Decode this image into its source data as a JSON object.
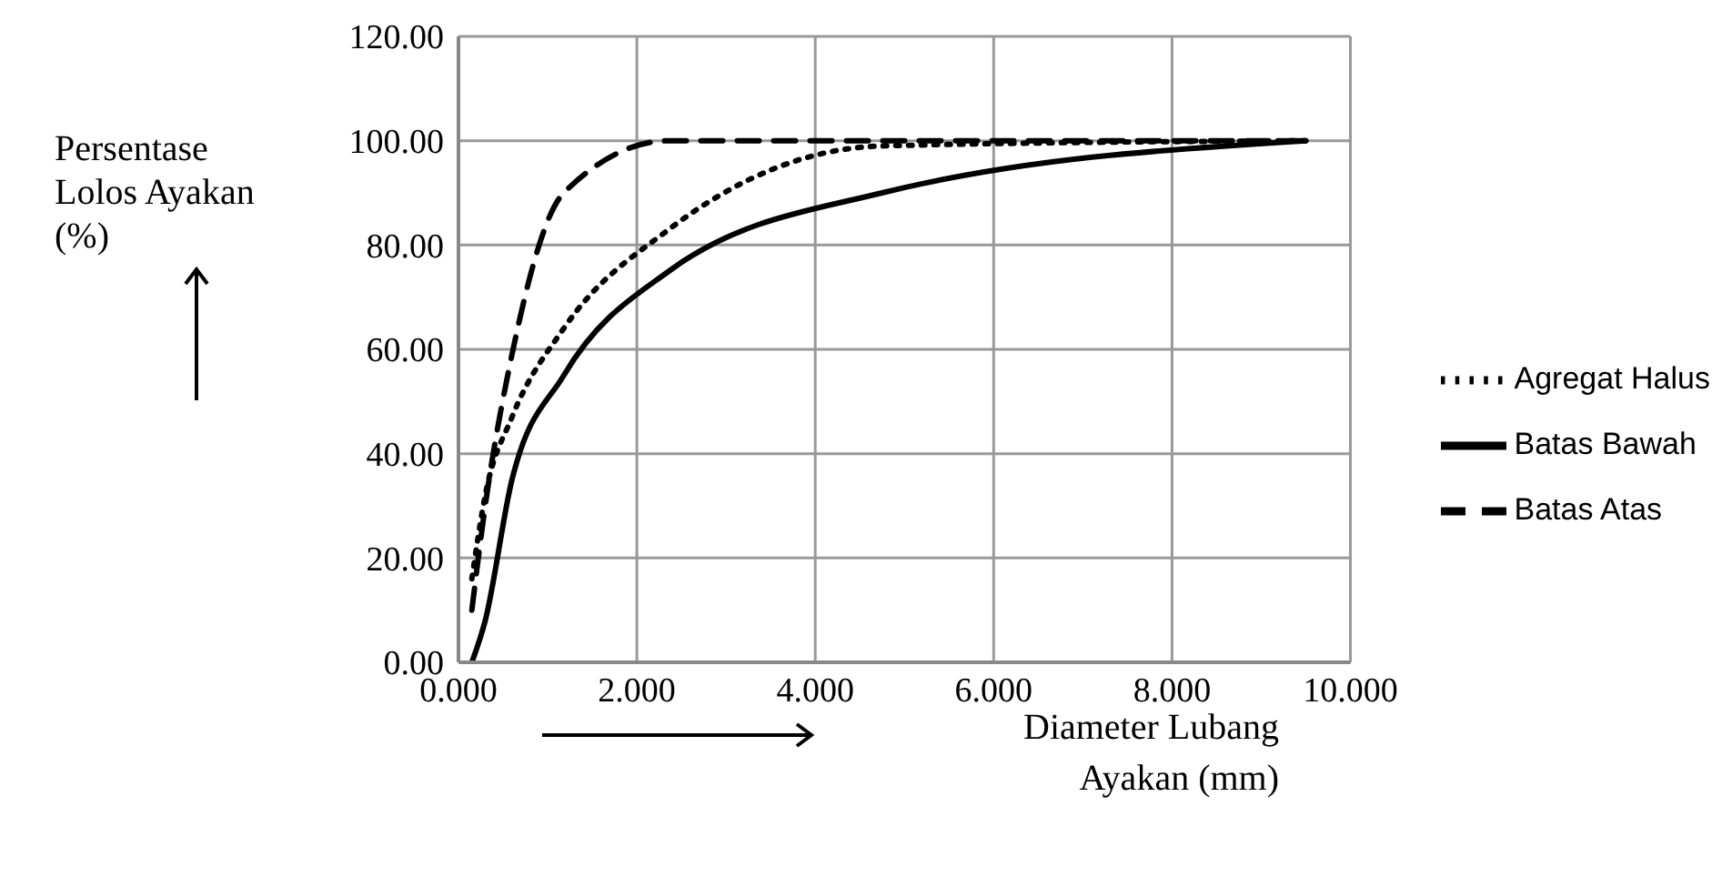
{
  "chart_data": {
    "type": "line",
    "xlabel": "Diameter Lubang Ayakan (mm)",
    "ylabel": "Persentase Lolos Ayakan (%)",
    "series": [
      {
        "name": "Agregat Halus",
        "color": "#000000",
        "line_style": "dotted",
        "x": [
          0.15,
          0.3,
          0.6,
          1.18,
          2.36,
          4.75,
          9.5
        ],
        "values": [
          16,
          32,
          47,
          64,
          83,
          99,
          100
        ]
      },
      {
        "name": "Batas Bawah",
        "color": "#000000",
        "line_style": "solid",
        "x": [
          0.15,
          0.3,
          0.6,
          1.18,
          2.36,
          4.75,
          9.5
        ],
        "values": [
          0,
          8,
          35,
          55,
          75,
          90,
          100
        ]
      },
      {
        "name": "Batas Atas",
        "color": "#000000",
        "line_style": "dashed",
        "x": [
          0.15,
          0.3,
          0.6,
          1.18,
          2.36,
          4.75,
          9.5
        ],
        "values": [
          10,
          30,
          59,
          90,
          100,
          100,
          100
        ]
      }
    ],
    "xlim": [
      0,
      10
    ],
    "xticks": [
      {
        "value": 0,
        "label": "0.000"
      },
      {
        "value": 2,
        "label": "2.000"
      },
      {
        "value": 4,
        "label": "4.000"
      },
      {
        "value": 6,
        "label": "6.000"
      },
      {
        "value": 8,
        "label": "8.000"
      },
      {
        "value": 10,
        "label": "10.000"
      }
    ],
    "ylim": [
      0,
      120
    ],
    "yticks": [
      {
        "value": 0,
        "label": "0.00"
      },
      {
        "value": 20,
        "label": "20.00"
      },
      {
        "value": 40,
        "label": "40.00"
      },
      {
        "value": 60,
        "label": "60.00"
      },
      {
        "value": 80,
        "label": "80.00"
      },
      {
        "value": 100,
        "label": "100.00"
      },
      {
        "value": 120,
        "label": "120.00"
      }
    ],
    "grid": true,
    "legend": "right",
    "marker": "none"
  }
}
